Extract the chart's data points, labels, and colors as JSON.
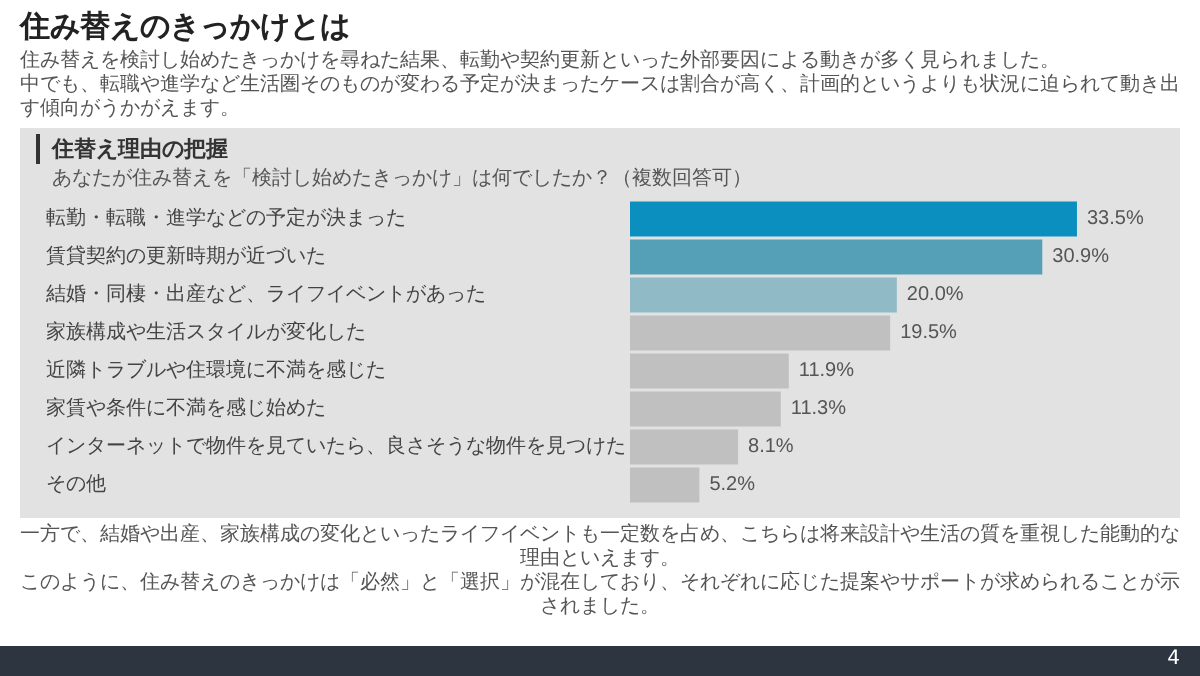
{
  "chart_data": {
    "type": "bar",
    "orientation": "horizontal",
    "title": "住み替えのきっかけとは",
    "subtitle": "住み替えを検討し始めたきっかけを尋ねた結果、転勤や契約更新といった外部要因による動きが多く見られました。",
    "annotations": [
      "中でも、転職や進学など生活圏そのものが変わる予定が決まったケースは割合が高く、計画的というよりも状況に迫られて動き出す傾向がうかがえます。",
      "住替え理由の把握",
      "あなたが住み替えを「検討し始めたきっかけ」は何でしたか？（複数回答可）",
      "一方で、結婚や出産、家族構成の変化といったライフイベントも一定数を占め、こちらは将来設計や生活の質を重視した能動的な理由といえます。",
      "このように、住み替えのきっかけは「必然」と「選択」が混在しており、それぞれに応じた提案やサポートが求められることが示されました。",
      "4"
    ],
    "categories": [
      "転勤・転職・進学などの予定が決まった",
      "賃貸契約の更新時期が近づいた",
      "結婚・同棲・出産など、ライフイベントがあった",
      "家族構成や生活スタイルが変化した",
      "近隣トラブルや住環境に不満を感じた",
      "家賃や条件に不満を感じ始めた",
      "インターネットで物件を見ていたら、良さそうな物件を見つけた",
      "その他"
    ],
    "values": [
      33.5,
      30.9,
      20.0,
      19.5,
      11.9,
      11.3,
      8.1,
      5.2
    ],
    "value_labels": [
      "33.5%",
      "30.9%",
      "20.0%",
      "19.5%",
      "11.9%",
      "11.3%",
      "8.1%",
      "5.2%"
    ],
    "colors": [
      "#0a8fbf",
      "#559fb7",
      "#8fbac6",
      "#c0c0c0",
      "#c0c0c0",
      "#c0c0c0",
      "#c0c0c0",
      "#c0c0c0"
    ]
  }
}
